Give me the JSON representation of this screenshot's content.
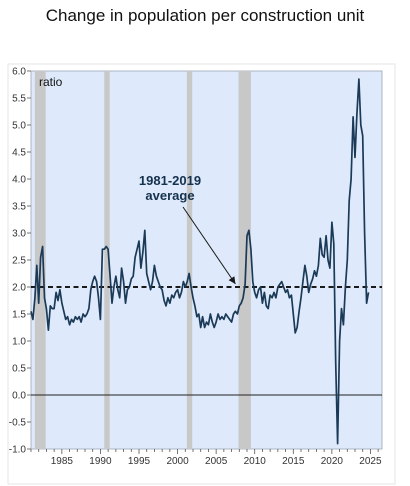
{
  "chart_data": {
    "type": "line",
    "title": "Change in population per construction unit",
    "ylabel": "ratio",
    "xlabel": "",
    "ylim": [
      -1.0,
      6.0
    ],
    "xlim": [
      1981.0,
      2026.5
    ],
    "y_ticks": [
      "-1.0",
      "-0.5",
      "0.0",
      "0.5",
      "1.0",
      "1.5",
      "2.0",
      "2.5",
      "3.0",
      "3.5",
      "4.0",
      "4.5",
      "5.0",
      "5.5",
      "6.0"
    ],
    "x_ticks": [
      1985,
      1990,
      1995,
      2000,
      2005,
      2010,
      2015,
      2020,
      2025
    ],
    "x_tick_labels": [
      "1985",
      "1990",
      "1995",
      "2000",
      "2005",
      "2010",
      "2015",
      "2020",
      "2025"
    ],
    "recessions": [
      [
        1981.5,
        1982.9
      ],
      [
        1990.5,
        1991.2
      ],
      [
        2001.2,
        2001.9
      ],
      [
        2007.9,
        2009.5
      ]
    ],
    "average": {
      "value": 2.0,
      "label_line1": "1981-2019",
      "label_line2": "average",
      "arrow_tip": [
        2007.5,
        2.0
      ]
    },
    "colors": {
      "line": "#1b3a57",
      "plot_bg": "#deeafb",
      "recession": "#c8c8c8",
      "average_line": "#1a1a1a"
    },
    "series": [
      {
        "values": [
          [
            1981.0,
            1.55
          ],
          [
            1981.25,
            1.4
          ],
          [
            1981.5,
            1.8
          ],
          [
            1981.75,
            2.4
          ],
          [
            1982.0,
            1.7
          ],
          [
            1982.25,
            2.55
          ],
          [
            1982.5,
            2.75
          ],
          [
            1982.75,
            1.8
          ],
          [
            1983.0,
            1.6
          ],
          [
            1983.25,
            1.2
          ],
          [
            1983.5,
            1.65
          ],
          [
            1983.75,
            1.6
          ],
          [
            1984.0,
            1.6
          ],
          [
            1984.25,
            1.9
          ],
          [
            1984.5,
            1.75
          ],
          [
            1984.75,
            1.95
          ],
          [
            1985.0,
            1.7
          ],
          [
            1985.25,
            1.55
          ],
          [
            1985.5,
            1.4
          ],
          [
            1985.75,
            1.45
          ],
          [
            1986.0,
            1.3
          ],
          [
            1986.25,
            1.4
          ],
          [
            1986.5,
            1.35
          ],
          [
            1986.75,
            1.45
          ],
          [
            1987.0,
            1.4
          ],
          [
            1987.25,
            1.45
          ],
          [
            1987.5,
            1.35
          ],
          [
            1987.75,
            1.5
          ],
          [
            1988.0,
            1.45
          ],
          [
            1988.25,
            1.5
          ],
          [
            1988.5,
            1.6
          ],
          [
            1988.75,
            1.95
          ],
          [
            1989.0,
            2.1
          ],
          [
            1989.25,
            2.2
          ],
          [
            1989.5,
            2.1
          ],
          [
            1989.75,
            1.8
          ],
          [
            1990.0,
            1.4
          ],
          [
            1990.25,
            2.7
          ],
          [
            1990.5,
            2.7
          ],
          [
            1990.75,
            2.75
          ],
          [
            1991.0,
            2.7
          ],
          [
            1991.25,
            2.2
          ],
          [
            1991.5,
            1.7
          ],
          [
            1991.75,
            2.0
          ],
          [
            1992.0,
            2.2
          ],
          [
            1992.25,
            1.95
          ],
          [
            1992.5,
            1.8
          ],
          [
            1992.75,
            2.35
          ],
          [
            1993.0,
            2.1
          ],
          [
            1993.25,
            1.7
          ],
          [
            1993.5,
            1.95
          ],
          [
            1993.75,
            2.0
          ],
          [
            1994.0,
            2.15
          ],
          [
            1994.25,
            2.2
          ],
          [
            1994.5,
            2.55
          ],
          [
            1994.75,
            2.7
          ],
          [
            1995.0,
            2.85
          ],
          [
            1995.25,
            2.35
          ],
          [
            1995.5,
            2.65
          ],
          [
            1995.75,
            3.05
          ],
          [
            1996.0,
            2.25
          ],
          [
            1996.25,
            2.1
          ],
          [
            1996.5,
            1.95
          ],
          [
            1996.75,
            2.1
          ],
          [
            1997.0,
            2.4
          ],
          [
            1997.25,
            2.2
          ],
          [
            1997.5,
            2.1
          ],
          [
            1997.75,
            2.0
          ],
          [
            1998.0,
            1.95
          ],
          [
            1998.25,
            1.75
          ],
          [
            1998.5,
            1.65
          ],
          [
            1998.75,
            1.8
          ],
          [
            1999.0,
            1.7
          ],
          [
            1999.25,
            1.85
          ],
          [
            1999.5,
            1.8
          ],
          [
            1999.75,
            1.9
          ],
          [
            2000.0,
            1.95
          ],
          [
            2000.25,
            1.8
          ],
          [
            2000.5,
            1.9
          ],
          [
            2000.75,
            2.1
          ],
          [
            2001.0,
            2.0
          ],
          [
            2001.25,
            2.1
          ],
          [
            2001.5,
            2.25
          ],
          [
            2001.75,
            2.0
          ],
          [
            2002.0,
            1.8
          ],
          [
            2002.25,
            1.65
          ],
          [
            2002.5,
            1.45
          ],
          [
            2002.75,
            1.5
          ],
          [
            2003.0,
            1.25
          ],
          [
            2003.25,
            1.45
          ],
          [
            2003.5,
            1.25
          ],
          [
            2003.75,
            1.35
          ],
          [
            2004.0,
            1.3
          ],
          [
            2004.25,
            1.5
          ],
          [
            2004.5,
            1.35
          ],
          [
            2004.75,
            1.25
          ],
          [
            2005.0,
            1.35
          ],
          [
            2005.25,
            1.5
          ],
          [
            2005.5,
            1.4
          ],
          [
            2005.75,
            1.45
          ],
          [
            2006.0,
            1.4
          ],
          [
            2006.25,
            1.5
          ],
          [
            2006.5,
            1.45
          ],
          [
            2006.75,
            1.4
          ],
          [
            2007.0,
            1.35
          ],
          [
            2007.25,
            1.5
          ],
          [
            2007.5,
            1.55
          ],
          [
            2007.75,
            1.5
          ],
          [
            2008.0,
            1.65
          ],
          [
            2008.25,
            1.7
          ],
          [
            2008.5,
            1.8
          ],
          [
            2008.75,
            2.05
          ],
          [
            2009.0,
            2.95
          ],
          [
            2009.25,
            3.05
          ],
          [
            2009.5,
            2.7
          ],
          [
            2009.75,
            2.1
          ],
          [
            2010.0,
            1.9
          ],
          [
            2010.25,
            1.8
          ],
          [
            2010.5,
            1.95
          ],
          [
            2010.75,
            2.0
          ],
          [
            2011.0,
            1.7
          ],
          [
            2011.25,
            1.9
          ],
          [
            2011.5,
            1.65
          ],
          [
            2011.75,
            1.6
          ],
          [
            2012.0,
            1.85
          ],
          [
            2012.25,
            1.8
          ],
          [
            2012.5,
            1.9
          ],
          [
            2012.75,
            1.8
          ],
          [
            2013.0,
            2.0
          ],
          [
            2013.25,
            2.05
          ],
          [
            2013.5,
            2.1
          ],
          [
            2013.75,
            2.0
          ],
          [
            2014.0,
            1.9
          ],
          [
            2014.25,
            1.95
          ],
          [
            2014.5,
            1.8
          ],
          [
            2014.75,
            1.85
          ],
          [
            2015.0,
            1.5
          ],
          [
            2015.25,
            1.15
          ],
          [
            2015.5,
            1.25
          ],
          [
            2015.75,
            1.55
          ],
          [
            2016.0,
            1.8
          ],
          [
            2016.25,
            2.1
          ],
          [
            2016.5,
            2.4
          ],
          [
            2016.75,
            2.2
          ],
          [
            2017.0,
            1.9
          ],
          [
            2017.25,
            2.05
          ],
          [
            2017.5,
            2.15
          ],
          [
            2017.75,
            2.3
          ],
          [
            2018.0,
            2.2
          ],
          [
            2018.25,
            2.4
          ],
          [
            2018.5,
            2.9
          ],
          [
            2018.75,
            2.6
          ],
          [
            2019.0,
            2.55
          ],
          [
            2019.25,
            2.95
          ],
          [
            2019.5,
            2.5
          ],
          [
            2019.75,
            2.35
          ],
          [
            2020.0,
            3.2
          ],
          [
            2020.25,
            2.8
          ],
          [
            2020.5,
            0.6
          ],
          [
            2020.75,
            -0.9
          ],
          [
            2021.0,
            1.0
          ],
          [
            2021.25,
            1.6
          ],
          [
            2021.5,
            1.3
          ],
          [
            2021.75,
            2.0
          ],
          [
            2022.0,
            2.5
          ],
          [
            2022.25,
            3.6
          ],
          [
            2022.5,
            4.0
          ],
          [
            2022.75,
            5.15
          ],
          [
            2023.0,
            4.4
          ],
          [
            2023.25,
            5.2
          ],
          [
            2023.5,
            5.85
          ],
          [
            2023.75,
            5.0
          ],
          [
            2024.0,
            4.8
          ],
          [
            2024.25,
            3.0
          ],
          [
            2024.5,
            1.7
          ],
          [
            2024.75,
            1.9
          ]
        ]
      }
    ]
  }
}
